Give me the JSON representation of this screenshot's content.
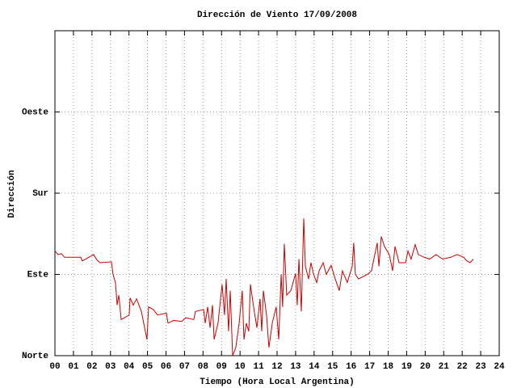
{
  "chart_data": {
    "type": "line",
    "title": "Dirección de Viento 17/09/2008",
    "xlabel": "Tiempo (Hora Local Argentina)",
    "ylabel": "Dirección",
    "xlim": [
      0,
      24
    ],
    "xticks": [
      {
        "value": 0,
        "label": "00"
      },
      {
        "value": 1,
        "label": "01"
      },
      {
        "value": 2,
        "label": "02"
      },
      {
        "value": 3,
        "label": "03"
      },
      {
        "value": 4,
        "label": "04"
      },
      {
        "value": 5,
        "label": "05"
      },
      {
        "value": 6,
        "label": "06"
      },
      {
        "value": 7,
        "label": "07"
      },
      {
        "value": 8,
        "label": "08"
      },
      {
        "value": 9,
        "label": "09"
      },
      10,
      11,
      12,
      13,
      14,
      15,
      16,
      17,
      18,
      19,
      20,
      21,
      22,
      23,
      24
    ],
    "ylim": [
      0,
      360
    ],
    "yticks": [
      {
        "value": 0,
        "label": "Norte"
      },
      {
        "value": 90,
        "label": "Este"
      },
      {
        "value": 180,
        "label": "Sur"
      },
      {
        "value": 270,
        "label": "Oeste"
      }
    ],
    "grid": true,
    "color": "#cc0000",
    "x": [
      0.0,
      0.17,
      0.35,
      0.52,
      0.96,
      1.4,
      1.48,
      1.83,
      2.09,
      2.27,
      2.44,
      3.05,
      3.14,
      3.27,
      3.36,
      3.45,
      3.58,
      4.01,
      4.06,
      4.23,
      4.41,
      4.67,
      4.97,
      5.06,
      5.32,
      5.54,
      6.02,
      6.11,
      6.41,
      6.85,
      7.07,
      7.5,
      7.59,
      8.03,
      8.12,
      8.25,
      8.38,
      8.51,
      8.6,
      8.81,
      9.03,
      9.16,
      9.25,
      9.38,
      9.47,
      9.6,
      9.77,
      9.95,
      10.12,
      10.21,
      10.34,
      10.47,
      10.56,
      10.73,
      10.91,
      11.08,
      11.17,
      11.26,
      11.43,
      11.56,
      11.74,
      11.95,
      12.09,
      12.22,
      12.3,
      12.39,
      12.52,
      12.74,
      13.0,
      13.09,
      13.18,
      13.31,
      13.44,
      13.53,
      13.7,
      13.83,
      13.96,
      14.14,
      14.27,
      14.49,
      14.66,
      14.92,
      15.14,
      15.36,
      15.53,
      15.79,
      16.06,
      16.14,
      16.23,
      16.4,
      16.88,
      17.1,
      17.23,
      17.41,
      17.5,
      17.63,
      17.8,
      18.06,
      18.24,
      18.37,
      18.59,
      18.94,
      19.07,
      19.24,
      19.46,
      19.63,
      19.94,
      20.24,
      20.59,
      20.94,
      21.38,
      21.73,
      22.08,
      22.25,
      22.43,
      22.6
    ],
    "values": [
      116,
      112,
      113,
      109,
      109,
      109,
      105,
      109,
      112,
      106,
      103,
      104,
      90,
      81,
      56,
      67,
      40,
      45,
      64,
      56,
      63,
      49,
      18,
      54,
      51,
      45,
      47,
      36,
      39,
      38,
      42,
      40,
      49,
      51,
      36,
      54,
      31,
      56,
      18,
      36,
      79,
      45,
      85,
      27,
      72,
      0,
      9,
      36,
      72,
      18,
      36,
      27,
      79,
      54,
      31,
      63,
      27,
      72,
      45,
      9,
      36,
      54,
      18,
      90,
      54,
      124,
      67,
      72,
      91,
      56,
      107,
      49,
      152,
      99,
      85,
      103,
      91,
      81,
      94,
      103,
      90,
      100,
      85,
      72,
      94,
      81,
      99,
      125,
      90,
      85,
      90,
      94,
      107,
      125,
      99,
      132,
      121,
      112,
      94,
      121,
      103,
      103,
      116,
      107,
      123,
      112,
      109,
      107,
      112,
      107,
      109,
      112,
      109,
      105,
      103,
      107
    ]
  }
}
